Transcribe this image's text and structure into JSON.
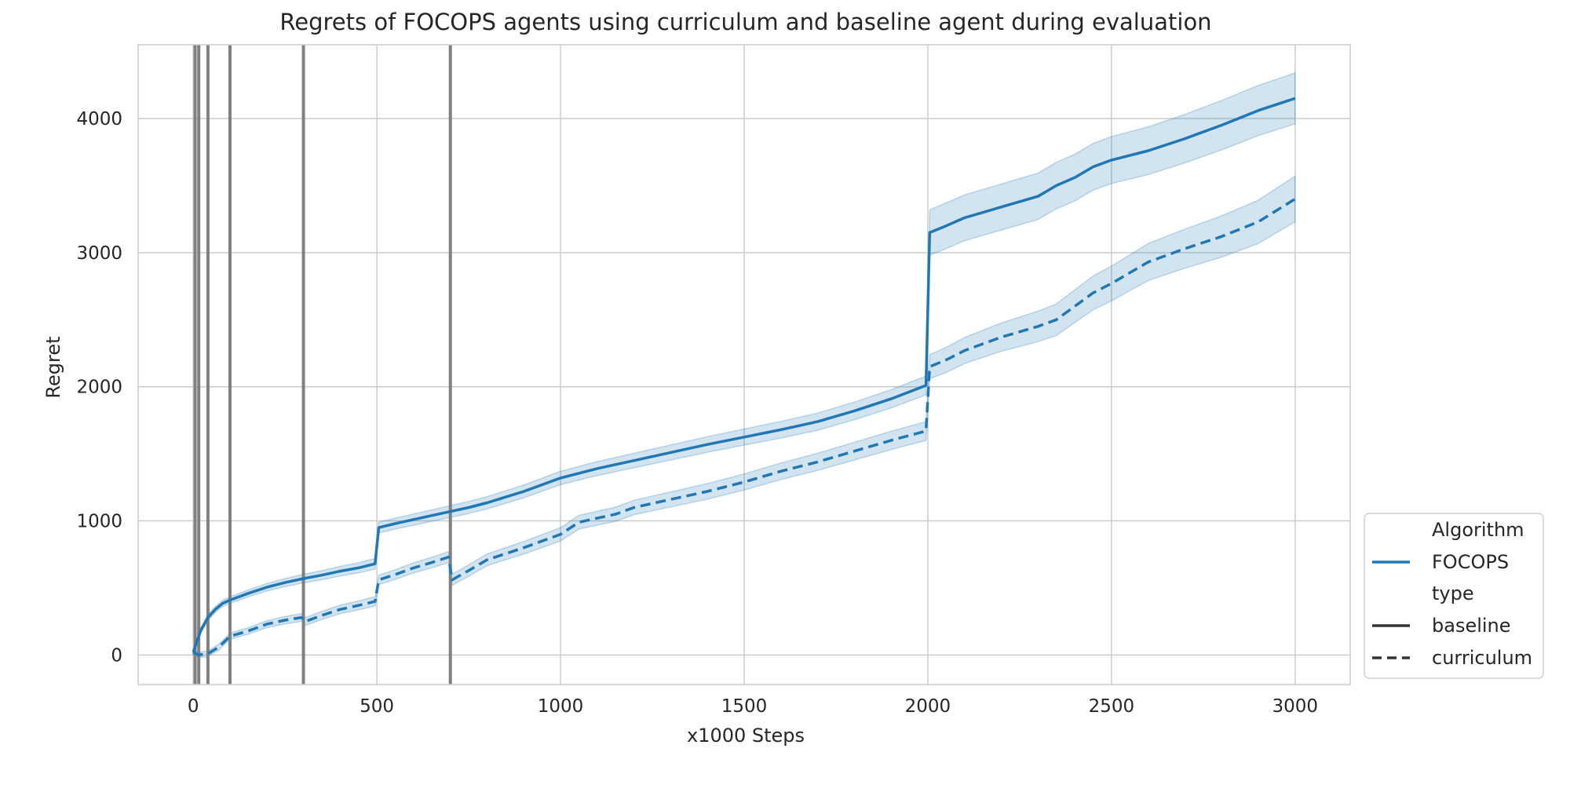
{
  "chart_data": {
    "type": "line",
    "title": "Regrets of FOCOPS agents using curriculum and baseline agent during evaluation",
    "xlabel": "x1000 Steps",
    "ylabel": "Regret",
    "xlim": [
      -150,
      3150
    ],
    "ylim": [
      -220,
      4550
    ],
    "x_ticks": [
      0,
      500,
      1000,
      1500,
      2000,
      2500,
      3000
    ],
    "y_ticks": [
      0,
      1000,
      2000,
      3000,
      4000
    ],
    "x_tick_labels": [
      "0",
      "500",
      "1000",
      "1500",
      "2000",
      "2500",
      "3000"
    ],
    "y_tick_labels": [
      "0",
      "1000",
      "2000",
      "3000",
      "4000"
    ],
    "grid": true,
    "curriculum_switch_steps": [
      5,
      15,
      40,
      100,
      300,
      700
    ],
    "series": [
      {
        "name": "baseline",
        "algorithm": "FOCOPS",
        "style": "solid",
        "color": "#1f77b4",
        "band_color": "#1f77b4",
        "points": [
          [
            0,
            20
          ],
          [
            20,
            180
          ],
          [
            40,
            280
          ],
          [
            60,
            340
          ],
          [
            80,
            385
          ],
          [
            100,
            410
          ],
          [
            150,
            460
          ],
          [
            200,
            505
          ],
          [
            250,
            540
          ],
          [
            300,
            570
          ],
          [
            350,
            595
          ],
          [
            400,
            625
          ],
          [
            450,
            650
          ],
          [
            495,
            680
          ],
          [
            505,
            950
          ],
          [
            550,
            980
          ],
          [
            600,
            1010
          ],
          [
            650,
            1040
          ],
          [
            700,
            1070
          ],
          [
            750,
            1100
          ],
          [
            800,
            1135
          ],
          [
            900,
            1220
          ],
          [
            1000,
            1320
          ],
          [
            1100,
            1390
          ],
          [
            1200,
            1450
          ],
          [
            1300,
            1510
          ],
          [
            1400,
            1570
          ],
          [
            1500,
            1625
          ],
          [
            1600,
            1680
          ],
          [
            1700,
            1740
          ],
          [
            1800,
            1820
          ],
          [
            1900,
            1910
          ],
          [
            1995,
            2010
          ],
          [
            2005,
            3150
          ],
          [
            2050,
            3200
          ],
          [
            2100,
            3260
          ],
          [
            2200,
            3340
          ],
          [
            2300,
            3420
          ],
          [
            2350,
            3500
          ],
          [
            2400,
            3560
          ],
          [
            2450,
            3640
          ],
          [
            2500,
            3690
          ],
          [
            2600,
            3760
          ],
          [
            2700,
            3850
          ],
          [
            2800,
            3950
          ],
          [
            2900,
            4060
          ],
          [
            3000,
            4150
          ]
        ],
        "band_halfwidth": [
          [
            0,
            20
          ],
          [
            500,
            40
          ],
          [
            1000,
            50
          ],
          [
            1995,
            70
          ],
          [
            2005,
            170
          ],
          [
            2500,
            175
          ],
          [
            3000,
            190
          ]
        ]
      },
      {
        "name": "curriculum",
        "algorithm": "FOCOPS",
        "style": "dashed",
        "color": "#1f77b4",
        "band_color": "#1f77b4",
        "points": [
          [
            0,
            20
          ],
          [
            15,
            0
          ],
          [
            40,
            10
          ],
          [
            70,
            60
          ],
          [
            100,
            140
          ],
          [
            150,
            180
          ],
          [
            200,
            230
          ],
          [
            250,
            260
          ],
          [
            295,
            280
          ],
          [
            305,
            250
          ],
          [
            350,
            295
          ],
          [
            400,
            340
          ],
          [
            450,
            370
          ],
          [
            495,
            400
          ],
          [
            505,
            560
          ],
          [
            550,
            600
          ],
          [
            600,
            650
          ],
          [
            650,
            690
          ],
          [
            695,
            730
          ],
          [
            705,
            560
          ],
          [
            750,
            630
          ],
          [
            800,
            710
          ],
          [
            900,
            800
          ],
          [
            1000,
            900
          ],
          [
            1050,
            990
          ],
          [
            1100,
            1020
          ],
          [
            1150,
            1050
          ],
          [
            1200,
            1100
          ],
          [
            1300,
            1160
          ],
          [
            1400,
            1220
          ],
          [
            1500,
            1290
          ],
          [
            1600,
            1370
          ],
          [
            1700,
            1440
          ],
          [
            1800,
            1520
          ],
          [
            1900,
            1600
          ],
          [
            1995,
            1670
          ],
          [
            2005,
            2150
          ],
          [
            2050,
            2200
          ],
          [
            2100,
            2270
          ],
          [
            2200,
            2370
          ],
          [
            2300,
            2450
          ],
          [
            2350,
            2500
          ],
          [
            2400,
            2600
          ],
          [
            2450,
            2700
          ],
          [
            2500,
            2770
          ],
          [
            2600,
            2930
          ],
          [
            2700,
            3030
          ],
          [
            2800,
            3120
          ],
          [
            2900,
            3230
          ],
          [
            3000,
            3400
          ]
        ],
        "band_halfwidth": [
          [
            0,
            20
          ],
          [
            500,
            35
          ],
          [
            1000,
            50
          ],
          [
            1995,
            70
          ],
          [
            2005,
            90
          ],
          [
            2500,
            130
          ],
          [
            3000,
            170
          ]
        ]
      }
    ],
    "legend": {
      "placement": "lower-right-outside",
      "entries": [
        {
          "label": "Algorithm",
          "kind": "header"
        },
        {
          "label": "FOCOPS",
          "kind": "line",
          "style": "solid",
          "color": "#1f77b4"
        },
        {
          "label": "type",
          "kind": "header"
        },
        {
          "label": "baseline",
          "kind": "line",
          "style": "solid",
          "color": "#333333"
        },
        {
          "label": "curriculum",
          "kind": "line",
          "style": "dashed",
          "color": "#333333"
        }
      ]
    }
  }
}
